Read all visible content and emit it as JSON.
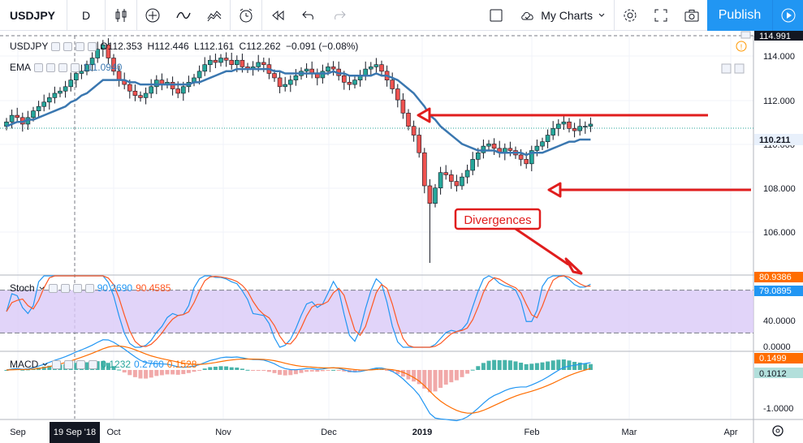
{
  "toolbar": {
    "symbol": "USDJPY",
    "interval": "D",
    "my_charts": "My Charts",
    "publish": "Publish"
  },
  "main_legend": {
    "symbol": "USDJPY",
    "ohlc": {
      "open": "O112.353",
      "high": "H112.446",
      "low": "L112.161",
      "close": "C112.262",
      "change": "−0.091 (−0.08%)"
    },
    "ema_label": "EMA",
    "ema_value": "111.0940"
  },
  "stoch_legend": {
    "label": "Stoch",
    "k": "90.2690",
    "d": "90.4585"
  },
  "macd_legend": {
    "label": "MACD",
    "hist": "0.1232",
    "macd": "0.2760",
    "signal": "0.1528"
  },
  "price_axis": {
    "ticks": [
      "114.000",
      "112.000",
      "110.000",
      "108.000",
      "106.000"
    ],
    "top_label": "114.991",
    "current_price": "110.211"
  },
  "stoch_axis": {
    "ticks": [
      "40.0000",
      "0.0000"
    ],
    "d_label": "80.9386",
    "k_label": "79.0895"
  },
  "macd_axis": {
    "ticks": [
      "-1.0000"
    ],
    "macd_label": "0.1499",
    "signal_label": "0.1012"
  },
  "time_axis": {
    "labels": [
      "Sep",
      "Oct",
      "Nov",
      "Dec",
      "2019",
      "Feb",
      "Mar",
      "Apr"
    ],
    "crosshair_date": "19 Sep '18"
  },
  "annotation": {
    "text": "Divergences"
  },
  "colors": {
    "up": "#26a69a",
    "down": "#ef5350",
    "ema": "#3a77b0",
    "stoch_k": "#2196f3",
    "stoch_d": "#ff5722",
    "stoch_band": "#d9c9f7",
    "arrow": "#e01d1d",
    "accent": "#2196f3"
  },
  "chart_data": {
    "type": "candlestick",
    "x_labels": [
      "Sep",
      "Oct",
      "Nov",
      "Dec",
      "2019",
      "Feb",
      "Mar",
      "Apr"
    ],
    "ylim": [
      104.0,
      115.0
    ],
    "close": [
      111.0,
      111.3,
      111.2,
      110.9,
      111.2,
      111.5,
      111.7,
      111.9,
      112.1,
      112.3,
      112.4,
      112.6,
      112.9,
      113.2,
      113.3,
      113.6,
      113.9,
      114.3,
      114.5,
      113.9,
      113.3,
      112.9,
      112.7,
      112.4,
      112.2,
      112.1,
      112.3,
      112.6,
      112.9,
      112.7,
      112.8,
      112.5,
      112.3,
      112.6,
      112.8,
      113.0,
      113.3,
      113.6,
      113.8,
      113.7,
      113.9,
      113.8,
      113.6,
      113.8,
      113.5,
      113.4,
      113.5,
      113.7,
      113.6,
      113.2,
      113.0,
      112.6,
      112.7,
      112.9,
      113.1,
      113.3,
      113.4,
      113.2,
      113.0,
      113.3,
      113.5,
      113.4,
      113.1,
      112.8,
      112.7,
      112.9,
      113.1,
      113.4,
      113.5,
      113.6,
      113.3,
      112.9,
      112.5,
      112.0,
      111.4,
      110.8,
      110.4,
      109.6,
      108.1,
      107.3,
      108.0,
      108.7,
      108.6,
      108.3,
      108.1,
      108.5,
      108.8,
      109.3,
      109.6,
      109.9,
      110.0,
      109.8,
      109.6,
      109.8,
      109.7,
      109.5,
      109.3,
      109.1,
      109.7,
      109.9,
      110.1,
      110.4,
      110.7,
      110.9,
      111.0,
      110.7,
      110.6,
      110.8,
      110.8,
      110.9
    ],
    "ema": [
      110.8,
      110.9,
      111.0,
      111.0,
      111.1,
      111.1,
      111.2,
      111.3,
      111.4,
      111.5,
      111.6,
      111.7,
      111.9,
      112.0,
      112.2,
      112.3,
      112.5,
      112.7,
      112.9,
      112.9,
      112.9,
      112.9,
      112.9,
      112.8,
      112.8,
      112.7,
      112.7,
      112.7,
      112.7,
      112.7,
      112.7,
      112.7,
      112.7,
      112.7,
      112.7,
      112.8,
      112.8,
      112.9,
      113.0,
      113.1,
      113.2,
      113.3,
      113.3,
      113.4,
      113.4,
      113.4,
      113.4,
      113.4,
      113.4,
      113.4,
      113.3,
      113.3,
      113.2,
      113.2,
      113.2,
      113.2,
      113.2,
      113.2,
      113.2,
      113.2,
      113.2,
      113.3,
      113.2,
      113.2,
      113.1,
      113.1,
      113.1,
      113.1,
      113.1,
      113.2,
      113.1,
      113.1,
      113.0,
      112.9,
      112.7,
      112.5,
      112.3,
      112.0,
      111.7,
      111.3,
      111.1,
      110.8,
      110.6,
      110.4,
      110.2,
      110.0,
      109.9,
      109.8,
      109.7,
      109.7,
      109.7,
      109.7,
      109.6,
      109.6,
      109.6,
      109.6,
      109.6,
      109.5,
      109.6,
      109.6,
      109.6,
      109.7,
      109.8,
      109.9,
      110.0,
      110.1,
      110.1,
      110.2,
      110.2,
      110.2
    ],
    "annotated_values": {
      "recent_high": 111.3,
      "recent_low": 108.1
    }
  }
}
